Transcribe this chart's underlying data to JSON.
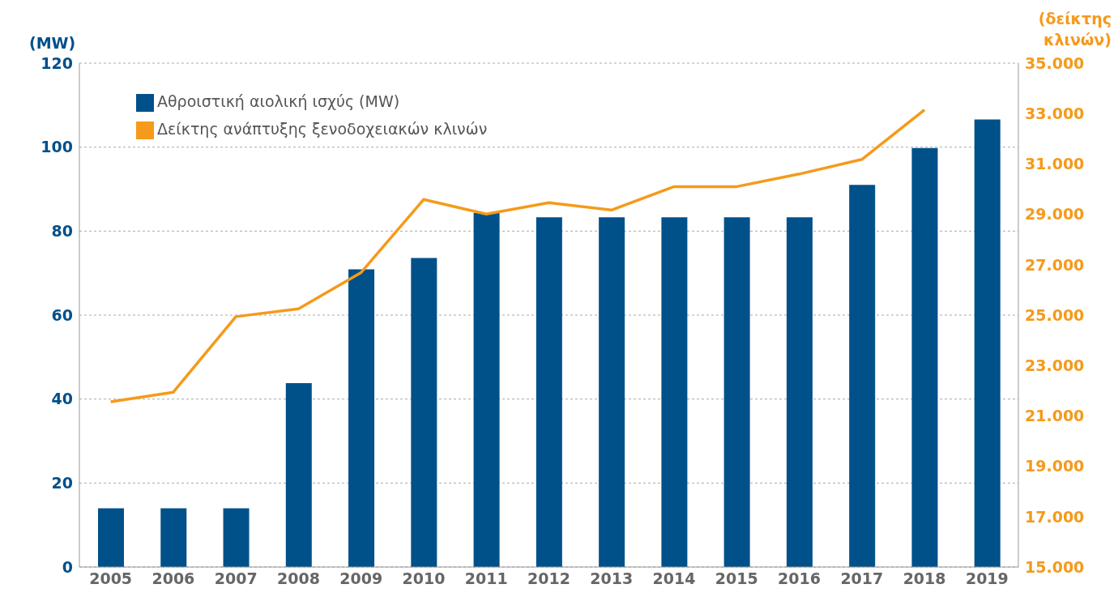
{
  "chart_data": {
    "type": "bar",
    "ylabel": "(MW)",
    "y2label": "(δείκτης κλινών)",
    "categories": [
      "2005",
      "2006",
      "2007",
      "2008",
      "2009",
      "2010",
      "2011",
      "2012",
      "2013",
      "2014",
      "2015",
      "2016",
      "2017",
      "2018",
      "2019"
    ],
    "series": [
      {
        "name": "Αθροιστική αιολική ισχύς (MW)",
        "color": "#00508a",
        "values": [
          14,
          14,
          14,
          43.8,
          70.9,
          73.6,
          84.3,
          83.3,
          83.3,
          83.3,
          83.3,
          83.3,
          91,
          99.8,
          106.6
        ]
      },
      {
        "name": "Δείκτης ανάπτυξης ξενοδοχειακών κλινών",
        "type": "line",
        "axis": "y2",
        "color": "#f59a1b",
        "values": [
          21560,
          21940,
          24940,
          25250,
          26690,
          29590,
          29010,
          29460,
          29170,
          30100,
          30100,
          30600,
          31180,
          33150,
          null
        ]
      }
    ],
    "ylim": [
      0,
      120
    ],
    "yticks": [
      0,
      20,
      40,
      60,
      80,
      100,
      120
    ],
    "y2lim": [
      15000,
      35000
    ],
    "y2ticks": [
      {
        "value": 15000,
        "label": "15.000"
      },
      {
        "value": 17000,
        "label": "17.000"
      },
      {
        "value": 19000,
        "label": "19.000"
      },
      {
        "value": 21000,
        "label": "21.000"
      },
      {
        "value": 23000,
        "label": "23.000"
      },
      {
        "value": 25000,
        "label": "25.000"
      },
      {
        "value": 27000,
        "label": "27.000"
      },
      {
        "value": 29000,
        "label": "29.000"
      },
      {
        "value": 31000,
        "label": "31.000"
      },
      {
        "value": 33000,
        "label": "33.000"
      },
      {
        "value": 35000,
        "label": "35.000"
      }
    ],
    "grid": "y",
    "legend": "top left",
    "marker": "none",
    "line_style": "solid"
  }
}
